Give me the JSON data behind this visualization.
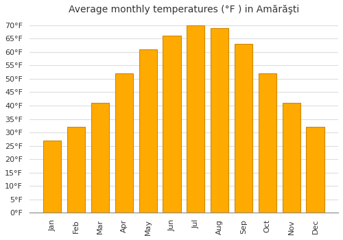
{
  "title": "Average monthly temperatures (°F ) in Amărăşti",
  "months": [
    "Jan",
    "Feb",
    "Mar",
    "Apr",
    "May",
    "Jun",
    "Jul",
    "Aug",
    "Sep",
    "Oct",
    "Nov",
    "Dec"
  ],
  "values": [
    27,
    32,
    41,
    52,
    61,
    66,
    70,
    69,
    63,
    52,
    41,
    32
  ],
  "bar_color": "#FFAA00",
  "bar_edge_color": "#CC8800",
  "ylim": [
    0,
    72
  ],
  "yticks": [
    0,
    5,
    10,
    15,
    20,
    25,
    30,
    35,
    40,
    45,
    50,
    55,
    60,
    65,
    70
  ],
  "background_color": "#ffffff",
  "grid_color": "#dddddd",
  "title_fontsize": 10,
  "tick_fontsize": 8
}
